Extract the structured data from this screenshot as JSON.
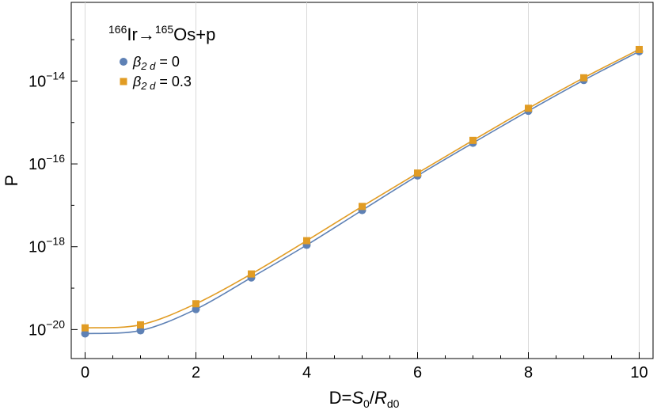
{
  "chart_data": {
    "type": "scatter",
    "annotation": {
      "parent_mass": "166",
      "parent": "Ir",
      "arrow": "→",
      "daughter_mass": "165",
      "daughter": "Os",
      "emitted": "+p"
    },
    "xlabel": {
      "prefix": "D=",
      "num": "S",
      "num_sub": "0",
      "slash": "/",
      "den": "R",
      "den_sub": "d0"
    },
    "ylabel": "P",
    "y_scale": "log",
    "xlim": [
      -0.25,
      10.25
    ],
    "ylim_exponent": [
      -20.7,
      -12.1
    ],
    "x_ticks": [
      0,
      2,
      4,
      6,
      8,
      10
    ],
    "y_ticks": [
      {
        "base": "10",
        "exp": "−20",
        "value_exp": -20
      },
      {
        "base": "10",
        "exp": "−18",
        "value_exp": -18
      },
      {
        "base": "10",
        "exp": "−16",
        "value_exp": -16
      },
      {
        "base": "10",
        "exp": "−14",
        "value_exp": -14
      }
    ],
    "grid": "vertical lines at major x ticks",
    "legend_position": "top-left",
    "series": [
      {
        "name_symbol": "β",
        "name_sub": "2 d",
        "name_value": " = 0",
        "marker": "circle",
        "color": "#5E81B5",
        "x": [
          0,
          1,
          2,
          3,
          4,
          5,
          6,
          7,
          8,
          9,
          10
        ],
        "y": [
          8e-21,
          9.5e-21,
          3.1e-20,
          1.8e-19,
          1.1e-18,
          7.6e-18,
          5.2e-17,
          3.2e-16,
          1.9e-15,
          1.05e-14,
          5.2e-14
        ]
      },
      {
        "name_symbol": "β",
        "name_sub": "2 d",
        "name_value": " = 0.3",
        "marker": "square",
        "color": "#E19C24",
        "x": [
          0,
          1,
          2,
          3,
          4,
          5,
          6,
          7,
          8,
          9,
          10
        ],
        "y": [
          1.1e-20,
          1.3e-20,
          4.2e-20,
          2.2e-19,
          1.4e-18,
          9.4e-18,
          6e-17,
          3.7e-16,
          2.2e-15,
          1.2e-14,
          5.8e-14
        ]
      }
    ]
  }
}
